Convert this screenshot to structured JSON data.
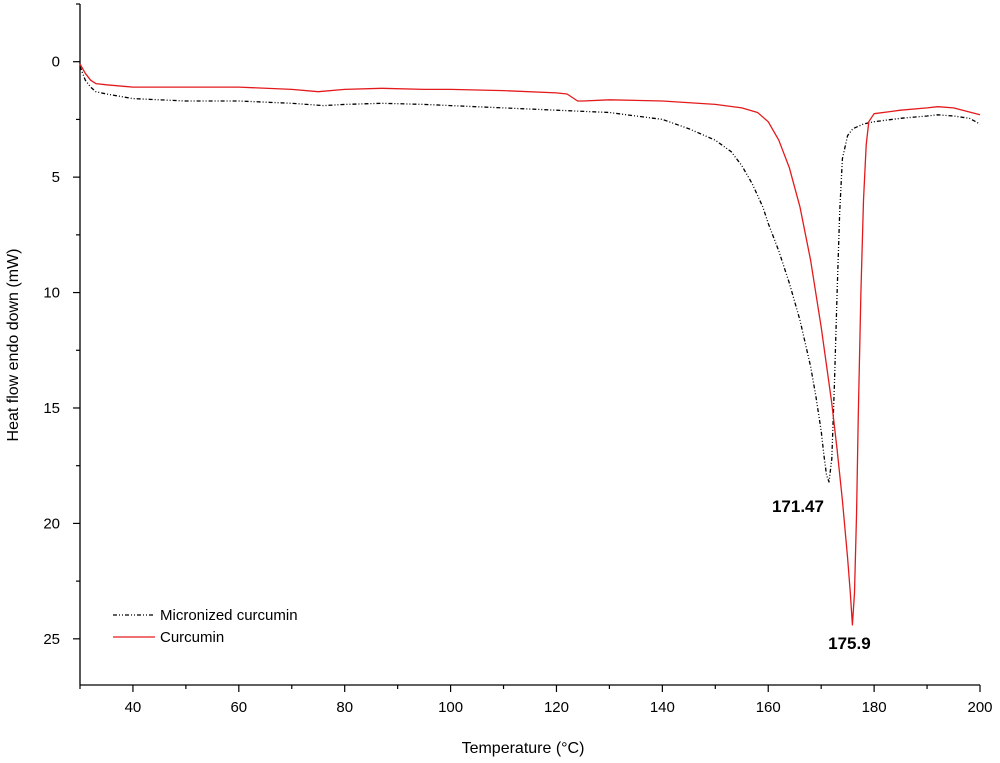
{
  "chart_data": {
    "type": "line",
    "title": "",
    "xlabel": "Temperature (°C)",
    "ylabel": "Heat flow endo down (mW)",
    "xlim": [
      30,
      200
    ],
    "ylim": [
      27,
      -2.5
    ],
    "y_inverted": true,
    "x_ticks": [
      40,
      60,
      80,
      100,
      120,
      140,
      160,
      180,
      200
    ],
    "y_ticks": [
      0,
      5,
      10,
      15,
      20,
      25
    ],
    "grid": false,
    "legend_position": "bottom-left",
    "series": [
      {
        "name": "Micronized curcumin",
        "color": "#000000",
        "dash": "dash-dot-dot",
        "x": [
          30,
          31,
          32,
          33,
          35,
          40,
          50,
          60,
          70,
          76,
          80,
          87,
          95,
          100,
          110,
          120,
          130,
          135,
          140,
          145,
          150,
          153,
          155,
          157,
          159,
          160,
          162,
          164,
          166,
          168,
          169,
          170,
          170.5,
          171,
          171.47,
          172,
          172.5,
          173,
          173.5,
          174,
          175,
          176,
          178,
          180,
          185,
          190,
          192,
          195,
          198,
          200
        ],
        "y": [
          0.2,
          0.8,
          1.1,
          1.3,
          1.4,
          1.6,
          1.7,
          1.7,
          1.8,
          1.9,
          1.85,
          1.8,
          1.85,
          1.9,
          2.0,
          2.1,
          2.2,
          2.35,
          2.5,
          2.9,
          3.4,
          3.9,
          4.5,
          5.3,
          6.3,
          7.0,
          8.2,
          9.6,
          11.2,
          13.2,
          14.5,
          16.0,
          17.0,
          17.9,
          18.2,
          17.2,
          14.0,
          10.0,
          6.5,
          4.2,
          3.2,
          2.9,
          2.7,
          2.6,
          2.45,
          2.35,
          2.3,
          2.35,
          2.45,
          2.7
        ]
      },
      {
        "name": "Curcumin",
        "color": "#e31a1c",
        "dash": "solid",
        "x": [
          30,
          31,
          32,
          33,
          35,
          40,
          50,
          60,
          70,
          75,
          80,
          87,
          95,
          100,
          110,
          120,
          122,
          124,
          125,
          130,
          140,
          150,
          155,
          158,
          160,
          162,
          164,
          166,
          168,
          170,
          172,
          173,
          174,
          175,
          175.5,
          175.9,
          176.3,
          176.7,
          177,
          177.5,
          178,
          178.5,
          179,
          180,
          185,
          190,
          192,
          195,
          200
        ],
        "y": [
          0.1,
          0.5,
          0.8,
          0.95,
          1.0,
          1.1,
          1.1,
          1.1,
          1.2,
          1.3,
          1.2,
          1.15,
          1.2,
          1.2,
          1.25,
          1.35,
          1.4,
          1.7,
          1.7,
          1.65,
          1.7,
          1.85,
          2.0,
          2.2,
          2.6,
          3.4,
          4.6,
          6.3,
          8.6,
          11.5,
          14.8,
          16.8,
          19.0,
          21.5,
          23.0,
          24.4,
          23.0,
          19.5,
          15.5,
          10.0,
          6.0,
          3.6,
          2.6,
          2.25,
          2.1,
          2.0,
          1.95,
          2.0,
          2.3
        ]
      }
    ],
    "annotations": [
      {
        "text": "171.47",
        "x": 171.47,
        "y": 18.2,
        "anchor": "below-left"
      },
      {
        "text": "175.9",
        "x": 175.9,
        "y": 24.4,
        "anchor": "below-right"
      }
    ]
  }
}
